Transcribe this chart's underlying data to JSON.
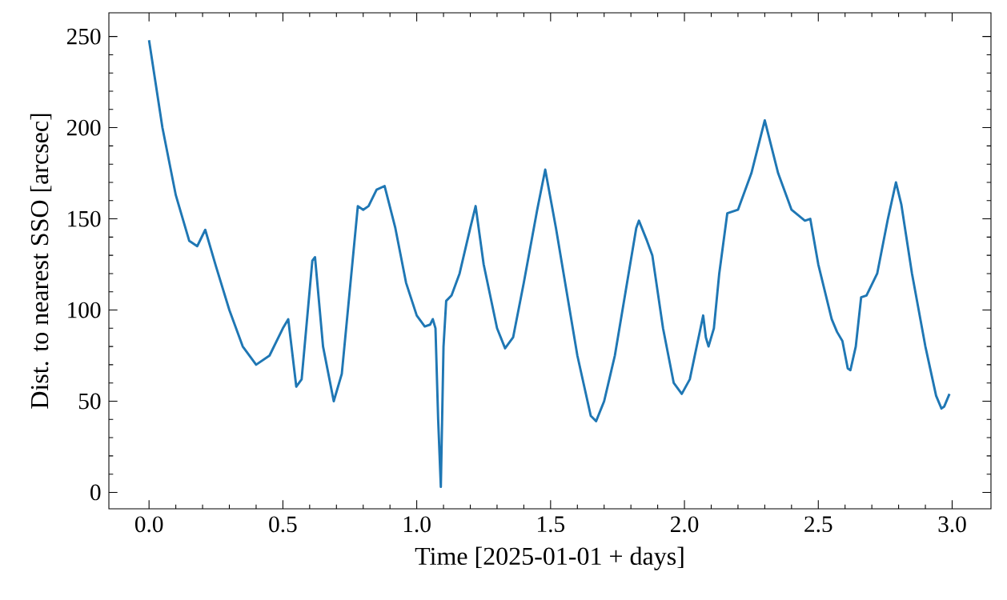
{
  "chart_data": {
    "type": "line",
    "xlabel": "Time [2025-01-01 + days]",
    "ylabel": "Dist. to nearest SSO [arcsec]",
    "xlim": [
      -0.15,
      3.145
    ],
    "ylim": [
      -9,
      263
    ],
    "xticks": [
      {
        "value": 0,
        "label": "0.0"
      },
      0.5,
      {
        "value": 1,
        "label": "1.0"
      },
      1.5,
      {
        "value": 2,
        "label": "2.0"
      },
      2.5,
      {
        "value": 3,
        "label": "3.0"
      }
    ],
    "yticks": [
      0,
      50,
      100,
      150,
      200,
      250
    ],
    "grid": false,
    "series": [
      {
        "color": "#1f77b4",
        "x": [
          0,
          0.05,
          0.1,
          0.15,
          0.18,
          0.21,
          0.25,
          0.3,
          0.35,
          0.4,
          0.45,
          0.5,
          0.52,
          0.55,
          0.57,
          0.61,
          0.62,
          0.65,
          0.69,
          0.72,
          0.78,
          0.8,
          0.82,
          0.85,
          0.88,
          0.92,
          0.96,
          1.0,
          1.03,
          1.05,
          1.06,
          1.07,
          1.08,
          1.09,
          1.1,
          1.11,
          1.13,
          1.16,
          1.2,
          1.22,
          1.25,
          1.3,
          1.33,
          1.36,
          1.4,
          1.45,
          1.48,
          1.52,
          1.56,
          1.6,
          1.65,
          1.67,
          1.7,
          1.74,
          1.78,
          1.82,
          1.83,
          1.86,
          1.88,
          1.92,
          1.96,
          1.99,
          2.02,
          2.06,
          2.07,
          2.08,
          2.09,
          2.11,
          2.13,
          2.16,
          2.2,
          2.25,
          2.3,
          2.35,
          2.4,
          2.45,
          2.47,
          2.5,
          2.55,
          2.57,
          2.59,
          2.61,
          2.62,
          2.64,
          2.66,
          2.68,
          2.72,
          2.76,
          2.79,
          2.81,
          2.85,
          2.9,
          2.94,
          2.96,
          2.97,
          2.99
        ],
        "values": [
          248,
          200,
          163,
          138,
          135,
          144,
          124,
          100,
          80,
          70,
          75,
          90,
          95,
          58,
          62,
          127,
          129,
          80,
          50,
          65,
          157,
          155,
          157,
          166,
          168,
          145,
          115,
          97,
          91,
          92,
          95,
          90,
          40,
          3,
          80,
          105,
          108,
          120,
          145,
          157,
          125,
          90,
          79,
          85,
          115,
          155,
          177,
          145,
          110,
          75,
          42,
          39,
          50,
          75,
          110,
          145,
          149,
          138,
          130,
          90,
          60,
          54,
          62,
          90,
          97,
          85,
          80,
          90,
          120,
          153,
          155,
          175,
          204,
          175,
          155,
          149,
          150,
          125,
          95,
          88,
          83,
          68,
          67,
          80,
          107,
          108,
          120,
          150,
          170,
          158,
          120,
          80,
          53,
          46,
          47,
          54
        ]
      }
    ]
  }
}
